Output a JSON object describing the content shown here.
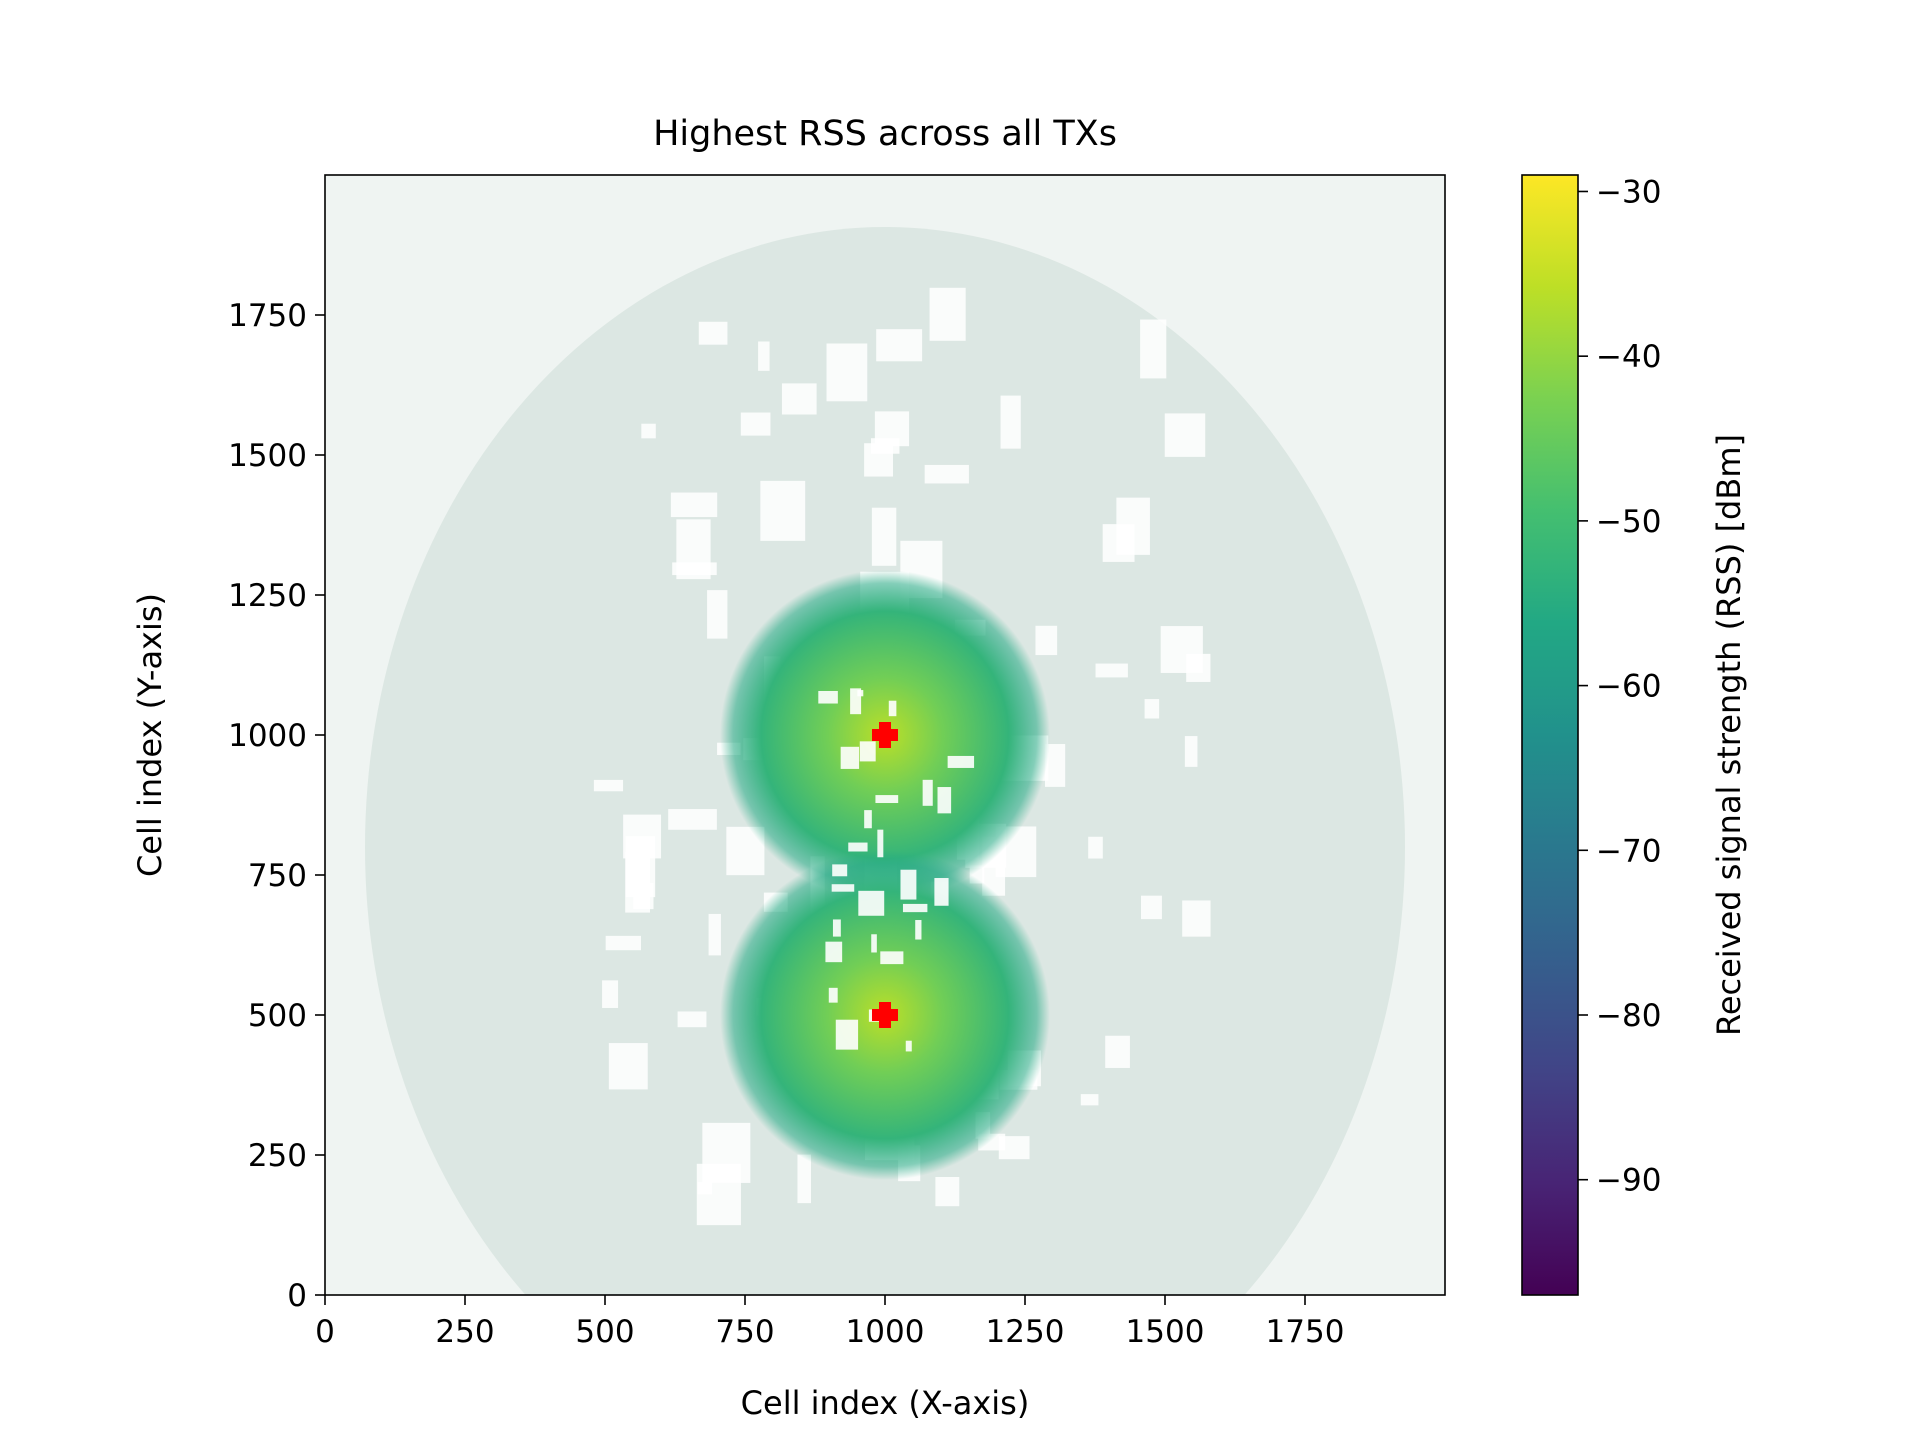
{
  "chart_data": {
    "type": "heatmap",
    "title": "Highest RSS across all TXs",
    "xlabel": "Cell index (X-axis)",
    "ylabel": "Cell index (Y-axis)",
    "xlim": [
      0,
      2000
    ],
    "ylim": [
      0,
      2000
    ],
    "xticks": [
      0,
      250,
      500,
      750,
      1000,
      1250,
      1500,
      1750
    ],
    "yticks": [
      0,
      250,
      500,
      750,
      1000,
      1250,
      1500,
      1750
    ],
    "xtick_labels": [
      "0",
      "250",
      "500",
      "750",
      "1000",
      "1250",
      "1500",
      "1750"
    ],
    "ytick_labels": [
      "0",
      "250",
      "500",
      "750",
      "1000",
      "1250",
      "1500",
      "1750"
    ],
    "grid": false,
    "colormap": "viridis",
    "colorbar": {
      "label": "Received signal strength (RSS) [dBm]",
      "range": [
        -97,
        -29
      ],
      "ticks": [
        -30,
        -40,
        -50,
        -60,
        -70,
        -80,
        -90
      ],
      "tick_labels": [
        "−30",
        "−40",
        "−50",
        "−60",
        "−70",
        "−80",
        "−90"
      ]
    },
    "transmitters": {
      "marker": "plus",
      "color": "#ff0000",
      "points": [
        {
          "x": 1000,
          "y": 1000
        },
        {
          "x": 1000,
          "y": 500
        }
      ]
    },
    "coverage_peak_dbm": -36,
    "coverage_floor_dbm": -56
  }
}
